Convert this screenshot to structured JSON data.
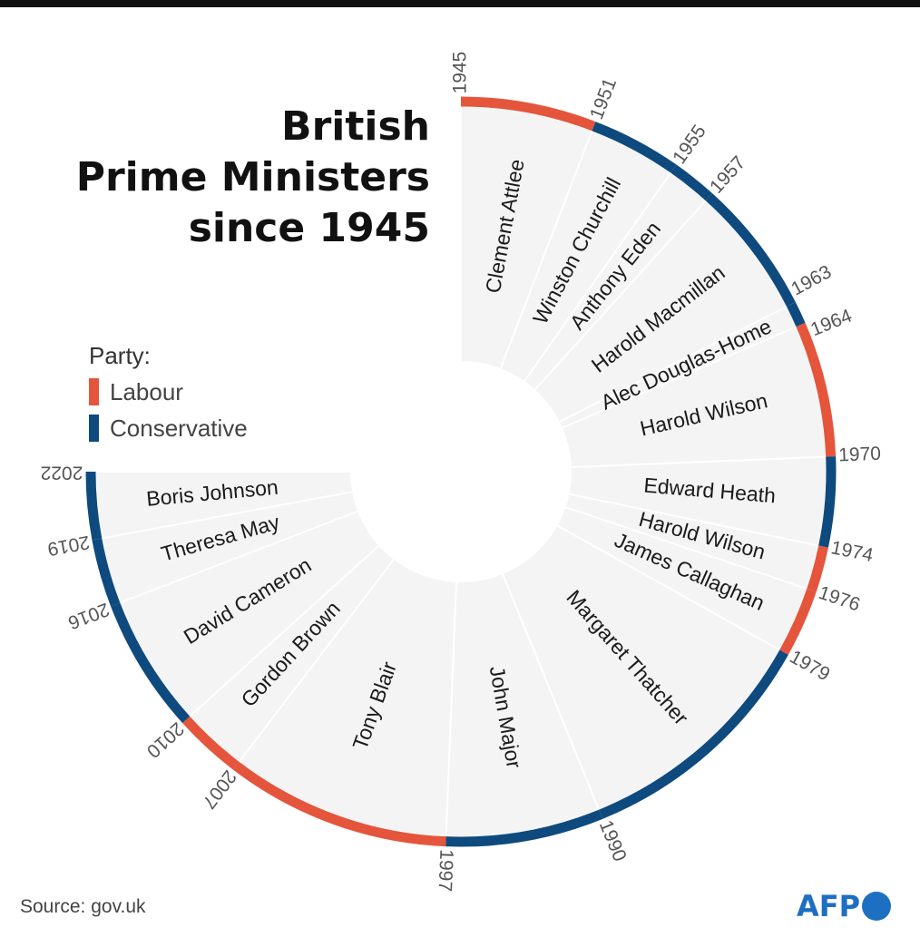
{
  "title_lines": [
    "British",
    "Prime Ministers",
    "since 1945"
  ],
  "legend": {
    "title": "Party:",
    "items": [
      {
        "label": "Labour",
        "color": "#e4553c"
      },
      {
        "label": "Conservative",
        "color": "#0e4a7e"
      }
    ]
  },
  "source": "Source: gov.uk",
  "logo": "AFP",
  "chart_data": {
    "type": "radial-timeline",
    "start_year": 1945,
    "end_year": 2022,
    "prime_ministers": [
      {
        "name": "Clement Attlee",
        "start": 1945,
        "end": 1951,
        "party": "Labour"
      },
      {
        "name": "Winston Churchill",
        "start": 1951,
        "end": 1955,
        "party": "Conservative"
      },
      {
        "name": "Anthony Eden",
        "start": 1955,
        "end": 1957,
        "party": "Conservative"
      },
      {
        "name": "Harold Macmillan",
        "start": 1957,
        "end": 1963,
        "party": "Conservative"
      },
      {
        "name": "Alec Douglas-Home",
        "start": 1963,
        "end": 1964,
        "party": "Conservative"
      },
      {
        "name": "Harold Wilson",
        "start": 1964,
        "end": 1970,
        "party": "Labour"
      },
      {
        "name": "Edward Heath",
        "start": 1970,
        "end": 1974,
        "party": "Conservative"
      },
      {
        "name": "Harold Wilson",
        "start": 1974,
        "end": 1976,
        "party": "Labour"
      },
      {
        "name": "James Callaghan",
        "start": 1976,
        "end": 1979,
        "party": "Labour"
      },
      {
        "name": "Margaret Thatcher",
        "start": 1979,
        "end": 1990,
        "party": "Conservative"
      },
      {
        "name": "John Major",
        "start": 1990,
        "end": 1997,
        "party": "Conservative"
      },
      {
        "name": "Tony Blair",
        "start": 1997,
        "end": 2007,
        "party": "Labour"
      },
      {
        "name": "Gordon Brown",
        "start": 2007,
        "end": 2010,
        "party": "Labour"
      },
      {
        "name": "David Cameron",
        "start": 2010,
        "end": 2016,
        "party": "Conservative"
      },
      {
        "name": "Theresa May",
        "start": 2016,
        "end": 2019,
        "party": "Conservative"
      },
      {
        "name": "Boris Johnson",
        "start": 2019,
        "end": 2022,
        "party": "Conservative"
      }
    ],
    "year_ticks": [
      1945,
      1951,
      1955,
      1957,
      1963,
      1964,
      1970,
      1974,
      1976,
      1979,
      1990,
      1997,
      2007,
      2010,
      2016,
      2019,
      2022
    ],
    "colors": {
      "Labour": "#e4553c",
      "Conservative": "#0e4a7e",
      "segment_fill": "#f4f4f4",
      "divider": "#ffffff",
      "label": "#1a1a1a",
      "tick_label": "#555555"
    }
  }
}
